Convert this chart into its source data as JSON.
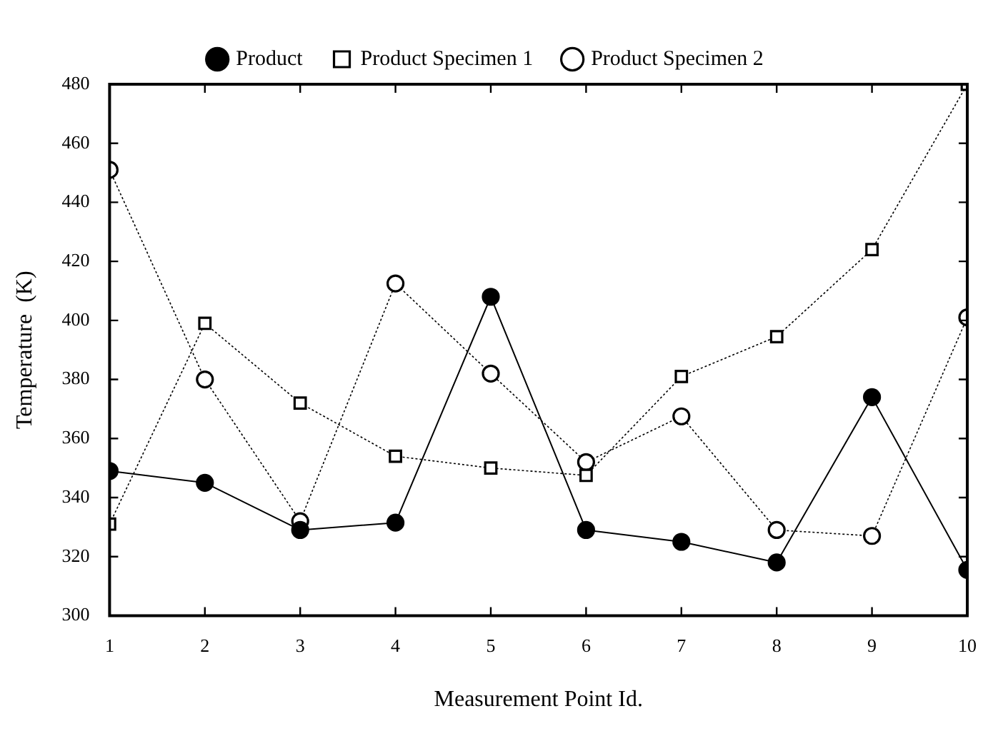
{
  "chart_data": {
    "type": "line",
    "xlabel": "Measurement Point Id.",
    "ylabel": "Temperature  (K)",
    "x": [
      1,
      2,
      3,
      4,
      5,
      6,
      7,
      8,
      9,
      10
    ],
    "xlim": [
      1,
      10
    ],
    "xticks": [
      1,
      2,
      3,
      4,
      5,
      6,
      7,
      8,
      9,
      10
    ],
    "ylim": [
      300,
      480
    ],
    "yticks": [
      300,
      320,
      340,
      360,
      380,
      400,
      420,
      440,
      460,
      480
    ],
    "legend": "top",
    "series": [
      {
        "name": "Product",
        "color": "#000000",
        "marker": "circle",
        "line_style": "solid",
        "values": [
          349,
          345,
          329,
          331.5,
          408,
          329,
          325,
          318,
          374,
          315.5
        ]
      },
      {
        "name": "Product Specimen 1",
        "color": "#000000",
        "marker": "square",
        "line_style": "dotted",
        "values": [
          331,
          399,
          372,
          354,
          350,
          347.5,
          381,
          394.5,
          424,
          480
        ]
      },
      {
        "name": "Product Specimen 2",
        "color": "#000000",
        "marker": "circle",
        "line_style": "dotted",
        "values": [
          451,
          380,
          332,
          412.5,
          382,
          352,
          367.5,
          329,
          327,
          401
        ]
      }
    ]
  }
}
